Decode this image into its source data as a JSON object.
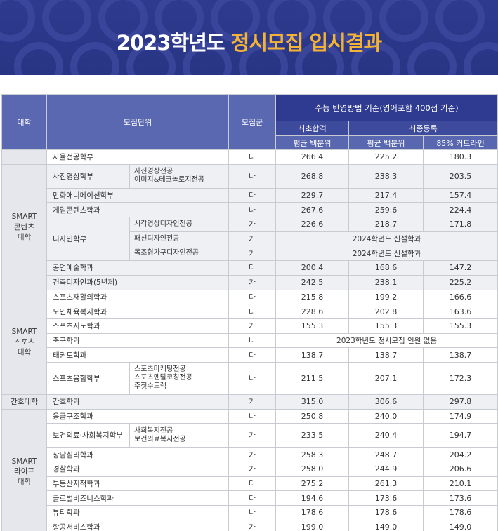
{
  "banner": {
    "title_prefix": "2023학년도 ",
    "title_accent": "정시모집 입시결과"
  },
  "table": {
    "headers": {
      "college": "대학",
      "unit": "모집단위",
      "group": "모집군",
      "criteria": "수능 반영방법 기준(영어포함 400점 기준)",
      "first_pass": "최초합격",
      "final_reg": "최종등록",
      "avg1": "평균 백분위",
      "avg2": "평균 백분위",
      "cut85": "85% 커트라인"
    },
    "colleges": [
      "",
      "SMART\n콘텐츠\n대학",
      "SMART\n스포츠\n대학",
      "간호대학",
      "SMART\n라이프\n대학"
    ],
    "rows": [
      {
        "dept": "자율전공학부",
        "major": "",
        "group": "나",
        "first": "266.4",
        "final": "225.2",
        "cut": "180.3"
      },
      {
        "dept": "사진영상학부",
        "major": "사진영상전공\n이미지&테크놀로지전공",
        "group": "나",
        "first": "268.8",
        "final": "238.3",
        "cut": "203.5"
      },
      {
        "dept": "만화애니메이션학부",
        "major": "",
        "group": "다",
        "first": "229.7",
        "final": "217.4",
        "cut": "157.4"
      },
      {
        "dept": "게임콘텐츠학과",
        "major": "",
        "group": "나",
        "first": "267.6",
        "final": "259.6",
        "cut": "224.4"
      },
      {
        "dept": "디자인학부",
        "major": "시각영상디자인전공",
        "group": "가",
        "first": "226.6",
        "final": "218.7",
        "cut": "171.8"
      },
      {
        "dept": "",
        "major": "패션디자인전공",
        "group": "가",
        "note": "2024학년도 신설학과"
      },
      {
        "dept": "",
        "major": "목조형가구디자인전공",
        "group": "가",
        "note": "2024학년도 신설학과"
      },
      {
        "dept": "공연예술학과",
        "major": "",
        "group": "다",
        "first": "200.4",
        "final": "168.6",
        "cut": "147.2"
      },
      {
        "dept": "건축디자인과(5년제)",
        "major": "",
        "group": "가",
        "first": "242.5",
        "final": "238.1",
        "cut": "225.2"
      },
      {
        "dept": "스포츠재활의학과",
        "major": "",
        "group": "다",
        "first": "215.8",
        "final": "199.2",
        "cut": "166.6"
      },
      {
        "dept": "노인체육복지학과",
        "major": "",
        "group": "다",
        "first": "228.6",
        "final": "202.8",
        "cut": "163.6"
      },
      {
        "dept": "스포츠지도학과",
        "major": "",
        "group": "가",
        "first": "155.3",
        "final": "155.3",
        "cut": "155.3"
      },
      {
        "dept": "축구학과",
        "major": "",
        "group": "나",
        "note": "2023학년도 정시모집 인원 없음"
      },
      {
        "dept": "태권도학과",
        "major": "",
        "group": "다",
        "first": "138.7",
        "final": "138.7",
        "cut": "138.7"
      },
      {
        "dept": "스포츠융합학부",
        "major": "스포츠마케팅전공\n스포츠멘탈코칭전공\n주짓수트랙",
        "group": "나",
        "first": "211.5",
        "final": "207.1",
        "cut": "172.3"
      },
      {
        "dept": "간호학과",
        "major": "",
        "group": "가",
        "first": "315.0",
        "final": "306.6",
        "cut": "297.8"
      },
      {
        "dept": "응급구조학과",
        "major": "",
        "group": "나",
        "first": "250.8",
        "final": "240.0",
        "cut": "174.9"
      },
      {
        "dept": "보건의료·사회복지학부",
        "major": "사회복지전공\n보건의료복지전공",
        "group": "가",
        "first": "233.5",
        "final": "240.4",
        "cut": "194.7"
      },
      {
        "dept": "상담심리학과",
        "major": "",
        "group": "가",
        "first": "258.3",
        "final": "248.7",
        "cut": "204.2"
      },
      {
        "dept": "경찰학과",
        "major": "",
        "group": "가",
        "first": "258.0",
        "final": "244.9",
        "cut": "206.6"
      },
      {
        "dept": "부동산지적학과",
        "major": "",
        "group": "다",
        "first": "275.2",
        "final": "261.3",
        "cut": "210.1"
      },
      {
        "dept": "글로벌비즈니스학과",
        "major": "",
        "group": "다",
        "first": "194.6",
        "final": "173.6",
        "cut": "173.6"
      },
      {
        "dept": "뷰티학과",
        "major": "",
        "group": "나",
        "first": "178.6",
        "final": "178.6",
        "cut": "178.6"
      },
      {
        "dept": "항공서비스학과",
        "major": "",
        "group": "가",
        "first": "199.0",
        "final": "149.0",
        "cut": "149.0"
      }
    ]
  }
}
